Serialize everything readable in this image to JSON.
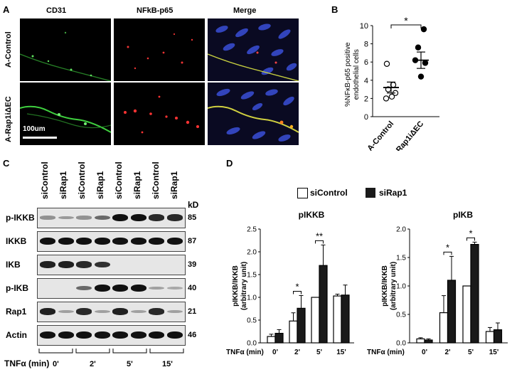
{
  "panelA": {
    "letter": "A",
    "columns": [
      "CD31",
      "NFkB-p65",
      "Merge"
    ],
    "rows": [
      "A-Control",
      "A-Rap1iΔEC"
    ],
    "scale_bar": "100um"
  },
  "panelB": {
    "letter": "B",
    "ylabel_line1": "%NFκB-p65 positive",
    "ylabel_line2": "endothelial cells",
    "sig": "*",
    "categories": [
      "A-Control",
      "A-Rap1iΔEC"
    ],
    "y_ticks": [
      "0",
      "2",
      "4",
      "6",
      "8",
      "10"
    ]
  },
  "panelC": {
    "letter": "C",
    "lanes": [
      "siControl",
      "siRap1",
      "siControl",
      "siRap1",
      "siControl",
      "siRap1",
      "siControl",
      "siRap1"
    ],
    "kd_header": "kD",
    "blots": [
      {
        "name": "p-IKKB",
        "kd": "85"
      },
      {
        "name": "IKKB",
        "kd": "87"
      },
      {
        "name": "IKB",
        "kd": "39"
      },
      {
        "name": "p-IKB",
        "kd": "40"
      },
      {
        "name": "Rap1",
        "kd": "21"
      },
      {
        "name": "Actin",
        "kd": "46"
      }
    ],
    "tnf_label": "TNFα (min)",
    "times": [
      "0'",
      "2'",
      "5'",
      "15'"
    ]
  },
  "panelD": {
    "letter": "D",
    "legend": [
      "siControl",
      "siRap1"
    ],
    "tnf_label": "TNFα (min)"
  },
  "colors": {
    "open_bar": "#ffffff",
    "filled_bar": "#1a1a1a",
    "cd31": "#3fd03f",
    "p65": "#e02a2a",
    "dapi": "#3a4fd8"
  },
  "chart_data": [
    {
      "type": "scatter",
      "title": "",
      "ylabel": "%NFκB-p65 positive endothelial cells",
      "ylim": [
        0,
        10
      ],
      "y_ticks": [
        0,
        2,
        4,
        6,
        8,
        10
      ],
      "categories": [
        "A-Control",
        "A-Rap1iΔEC"
      ],
      "series": [
        {
          "category": "A-Control",
          "marker": "open",
          "points": [
            5.8,
            3.5,
            3.0,
            2.2,
            2.0,
            2.6
          ],
          "mean": 3.2,
          "sem": 0.6
        },
        {
          "category": "A-Rap1iΔEC",
          "marker": "filled",
          "points": [
            9.6,
            7.6,
            6.2,
            5.9,
            4.4
          ],
          "mean": 6.2,
          "sem": 0.9
        }
      ],
      "significance": "*"
    },
    {
      "type": "bar",
      "title": "pIKKB",
      "ylabel": "pIKKB/IKKB (arbitrary unit)",
      "ylim": [
        0,
        2.5
      ],
      "y_ticks": [
        "0.0",
        "0.5",
        "1.0",
        "1.5",
        "2.0",
        "2.5"
      ],
      "categories": [
        "0'",
        "2'",
        "5'",
        "15'"
      ],
      "series": [
        {
          "values": [
            0.14,
            0.48,
            1.0,
            1.03
          ],
          "errors": [
            0.05,
            0.18,
            0.0,
            0.04
          ]
        },
        {
          "values": [
            0.21,
            0.76,
            1.7,
            1.05
          ],
          "errors": [
            0.08,
            0.28,
            0.45,
            0.22
          ]
        }
      ],
      "significance": [
        {
          "category": "2'",
          "label": "*"
        },
        {
          "category": "5'",
          "label": "**"
        }
      ]
    },
    {
      "type": "bar",
      "title": "pIKB",
      "ylabel": "pIKKB/IKKB (arbitrary unit)",
      "ylim": [
        0,
        2.0
      ],
      "y_ticks": [
        "0.0",
        "0.5",
        "1.0",
        "1.5",
        "2.0"
      ],
      "categories": [
        "0'",
        "2'",
        "5'",
        "15'"
      ],
      "series": [
        {
          "values": [
            0.07,
            0.53,
            1.0,
            0.2
          ],
          "errors": [
            0.02,
            0.3,
            0.0,
            0.07
          ]
        },
        {
          "values": [
            0.05,
            1.1,
            1.73,
            0.23
          ],
          "errors": [
            0.02,
            0.42,
            0.04,
            0.12
          ]
        }
      ],
      "significance": [
        {
          "category": "2'",
          "label": "*"
        },
        {
          "category": "5'",
          "label": "*"
        }
      ]
    }
  ]
}
